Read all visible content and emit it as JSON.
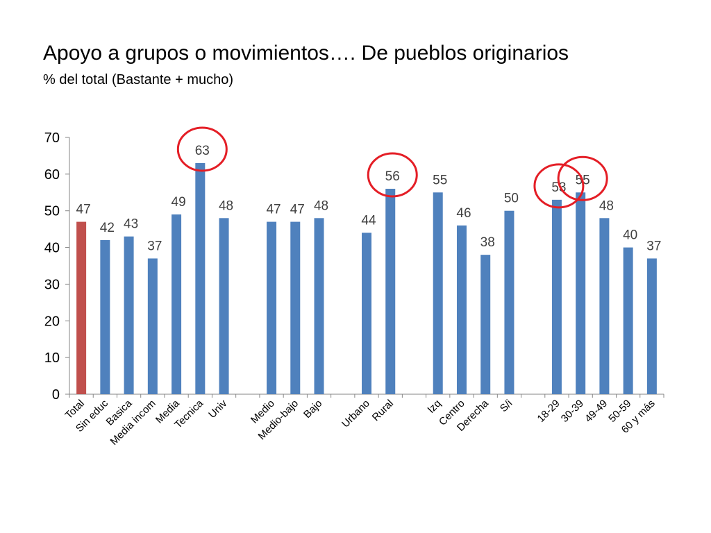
{
  "slide": {
    "title": "Apoyo a grupos o movimientos…. De pueblos originarios",
    "subtitle": "% del total (Bastante + mucho)"
  },
  "chart_data": {
    "type": "bar",
    "title": "",
    "xlabel": "",
    "ylabel": "",
    "ylim": [
      0,
      70
    ],
    "yticks": [
      0,
      10,
      20,
      30,
      40,
      50,
      60,
      70
    ],
    "grid": false,
    "legend": "none",
    "colors": {
      "total": "#C0504D",
      "default": "#4F81BD",
      "highlight_circle": "#E41E26"
    },
    "categories": [
      "Total",
      "Sin educ",
      "Basica",
      "Media incom",
      "Media",
      "Tecnica",
      "Univ",
      "",
      "Medio",
      "Medio-bajo",
      "Bajo",
      "",
      "Urbano",
      "Rural",
      "",
      "Izq",
      "Centro",
      "Derecha",
      "S/i",
      "",
      "18-29",
      "30-39",
      "49-49",
      "50-59",
      "60 y más"
    ],
    "values": [
      47,
      42,
      43,
      37,
      49,
      63,
      48,
      null,
      47,
      47,
      48,
      null,
      44,
      56,
      null,
      55,
      46,
      38,
      50,
      null,
      53,
      55,
      48,
      40,
      37
    ],
    "highlighted_categories": [
      "Tecnica",
      "Rural",
      "18-29",
      "30-39"
    ]
  }
}
